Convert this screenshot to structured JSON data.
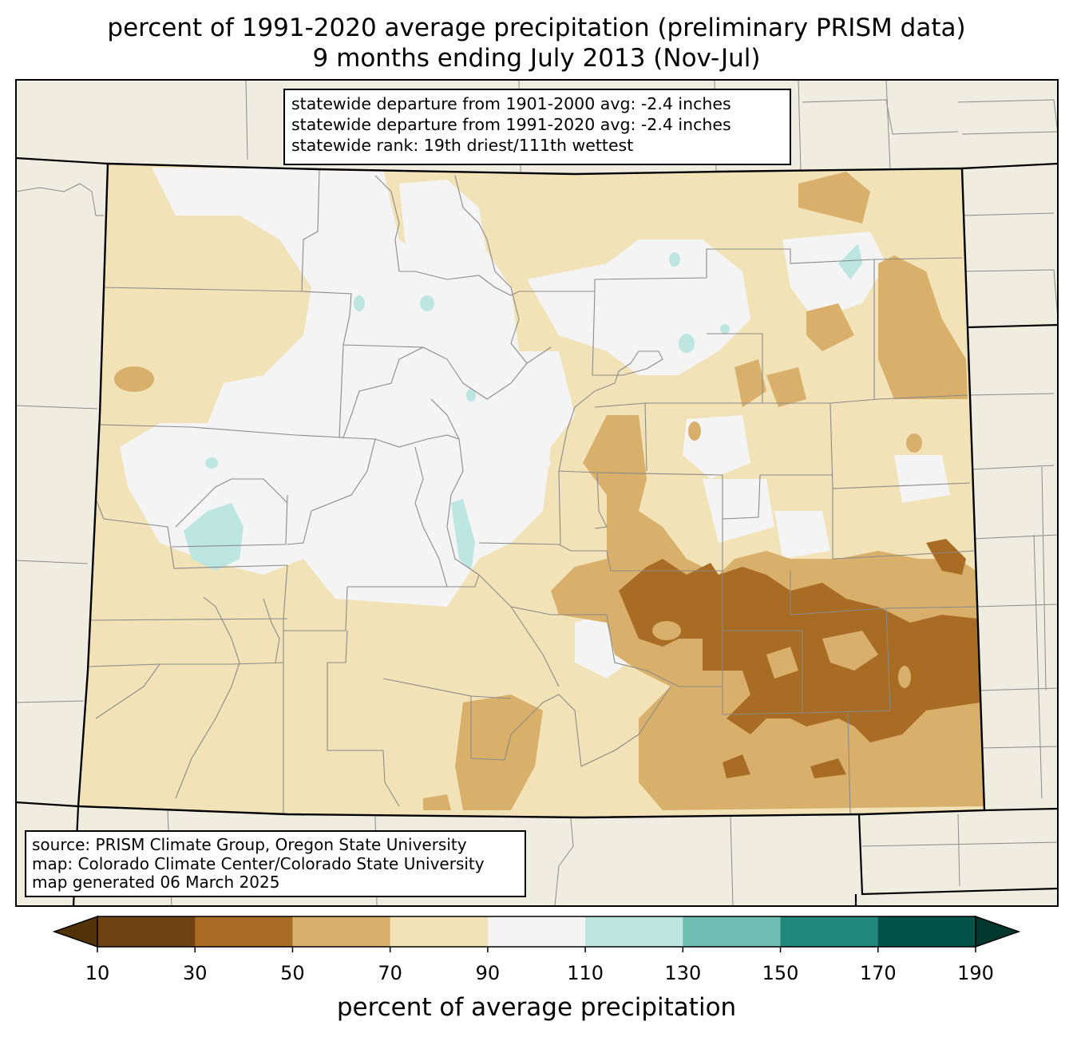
{
  "title": {
    "line1": "percent of 1991-2020 average precipitation (preliminary PRISM data)",
    "line2": "9 months ending July 2013 (Nov-Jul)"
  },
  "stats": {
    "line1": "statewide departure from 1901-2000 avg: -2.4 inches",
    "line2": "statewide departure from 1991-2020 avg: -2.4 inches",
    "line3": "statewide rank: 19th driest/111th wettest"
  },
  "source": {
    "line1": "source: PRISM Climate Group, Oregon State University",
    "line2": "map: Colorado Climate Center/Colorado State University",
    "line3": "map generated 06 March 2025"
  },
  "colorbar": {
    "label": "percent of average precipitation",
    "ticks": [
      "10",
      "30",
      "50",
      "70",
      "90",
      "110",
      "130",
      "150",
      "170",
      "190"
    ],
    "colors": [
      "#6e4310",
      "#a86c25",
      "#d8b06b",
      "#f2e2b8",
      "#f3f4f3",
      "#bde6e0",
      "#6fc0b3",
      "#21867c",
      "#01534a"
    ],
    "under_color": "#533208",
    "over_color": "#00382f"
  },
  "map_colors": {
    "background": "#efede0",
    "state_fill": "#f2e2b8",
    "near_normal": "#f3f4f3",
    "dry_50_70": "#d8b06b",
    "dry_30_50": "#a86c25",
    "wet_110_130": "#bde6e0"
  }
}
